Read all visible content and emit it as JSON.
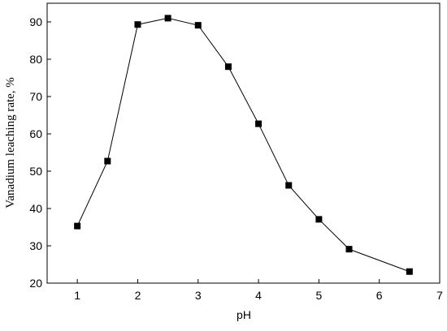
{
  "chart_data": {
    "type": "line",
    "x_label": "pH",
    "y_label": "Vanadium leaching rate, %",
    "x": [
      1,
      1.5,
      2,
      2.5,
      3,
      3.5,
      4,
      4.5,
      5,
      5.5,
      6.5
    ],
    "series": [
      {
        "name": "Vanadium leaching rate",
        "color": "#000000",
        "values": [
          35.3,
          52.7,
          89.3,
          91.0,
          89.1,
          78.0,
          62.7,
          46.2,
          37.1,
          29.1,
          23.1
        ]
      }
    ],
    "xlim": [
      0.5,
      7
    ],
    "ylim": [
      20,
      95
    ],
    "xticks": [
      1,
      2,
      3,
      4,
      5,
      6,
      7
    ],
    "yticks": [
      20,
      30,
      40,
      50,
      60,
      70,
      80,
      90
    ],
    "grid": false
  }
}
